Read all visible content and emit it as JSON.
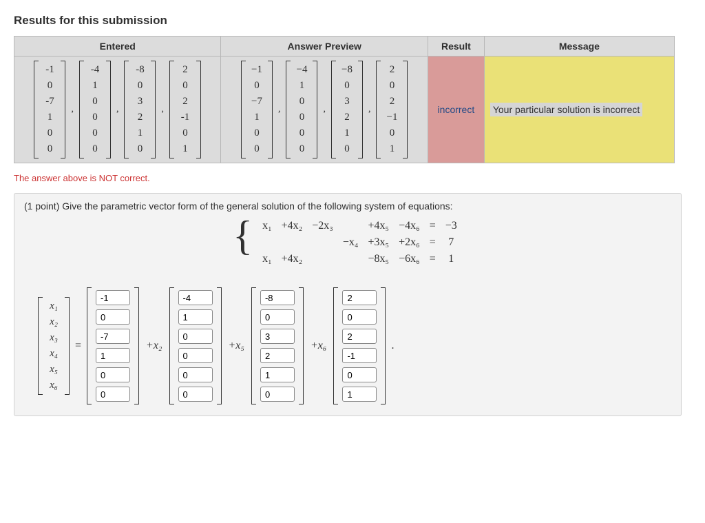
{
  "title": "Results for this submission",
  "headers": {
    "entered": "Entered",
    "preview": "Answer Preview",
    "result": "Result",
    "message": "Message"
  },
  "entered_vectors": [
    [
      "-1",
      "0",
      "-7",
      "1",
      "0",
      "0"
    ],
    [
      "-4",
      "1",
      "0",
      "0",
      "0",
      "0"
    ],
    [
      "-8",
      "0",
      "3",
      "2",
      "1",
      "0"
    ],
    [
      "2",
      "0",
      "2",
      "-1",
      "0",
      "1"
    ]
  ],
  "preview_vectors": [
    [
      "−1",
      "0",
      "−7",
      "1",
      "0",
      "0"
    ],
    [
      "−4",
      "1",
      "0",
      "0",
      "0",
      "0"
    ],
    [
      "−8",
      "0",
      "3",
      "2",
      "1",
      "0"
    ],
    [
      "2",
      "0",
      "2",
      "−1",
      "0",
      "1"
    ]
  ],
  "result_text": "incorrect",
  "message_text": "Your particular solution is incorrect",
  "not_correct": "The answer above is NOT correct.",
  "prompt": "(1 point) Give the parametric vector form of the general solution of the following system of equations:",
  "eq_rows": [
    [
      "x₁",
      "+4x₂",
      "−2x₃",
      "",
      "+4x₅",
      "−4x₆",
      "=",
      "−3"
    ],
    [
      "",
      "",
      "",
      "−x₄",
      "+3x₅",
      "+2x₆",
      "=",
      "7"
    ],
    [
      "x₁",
      "+4x₂",
      "",
      "",
      "−8x₅",
      "−6x₆",
      "=",
      "1"
    ]
  ],
  "var_labels": [
    "x₁",
    "x₂",
    "x₃",
    "x₄",
    "x₅",
    "x₆"
  ],
  "coefs": [
    "+x₂",
    "+x₅",
    "+x₆"
  ],
  "answer_inputs": [
    [
      "-1",
      "0",
      "-7",
      "1",
      "0",
      "0"
    ],
    [
      "-4",
      "1",
      "0",
      "0",
      "0",
      "0"
    ],
    [
      "-8",
      "0",
      "3",
      "2",
      "1",
      "0"
    ],
    [
      "2",
      "0",
      "2",
      "-1",
      "0",
      "1"
    ]
  ],
  "equals": "=",
  "period": ".",
  "comma": ","
}
